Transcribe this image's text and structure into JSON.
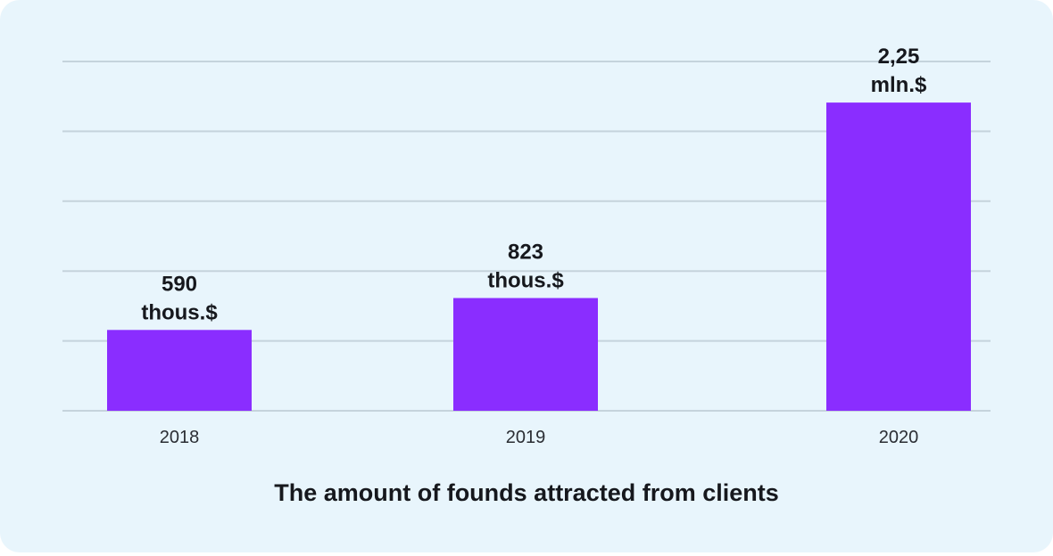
{
  "chart_data": {
    "type": "bar",
    "title": "The amount of founds attracted from clients",
    "categories": [
      "2018",
      "2019",
      "2020"
    ],
    "values": [
      590,
      823,
      2250
    ],
    "value_unit": "thous.$",
    "data_labels": [
      [
        "590",
        "thous.$"
      ],
      [
        "823",
        "thous.$"
      ],
      [
        "2,25",
        "mln.$"
      ]
    ],
    "ylim": [
      0,
      2550
    ],
    "grid": true,
    "bar_color": "#8a2dff",
    "grid_color": "#c5d3dc",
    "background_color": "#e8f5fc"
  }
}
